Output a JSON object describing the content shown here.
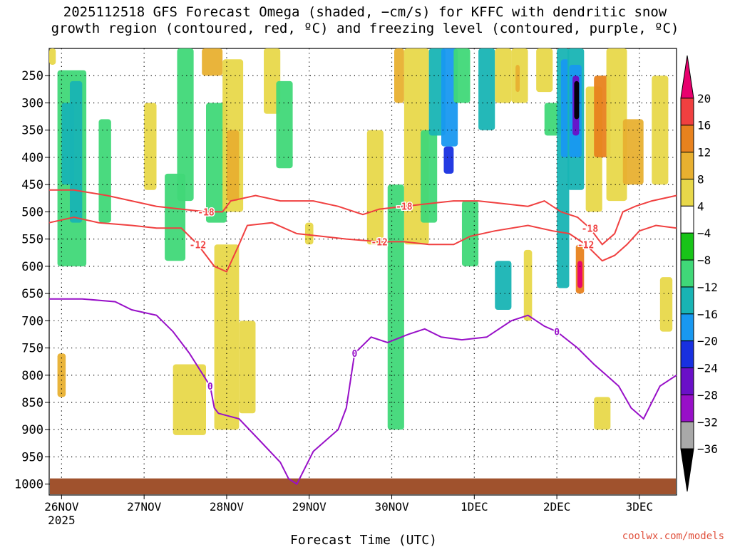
{
  "title": {
    "line1": "2025112518 GFS Forecast Omega (shaded, −cm/s) for KFFC with dendritic snow",
    "line2": "growth region (contoured, red, ºC) and freezing level (contoured, purple, ºC)"
  },
  "credit": "coolwx.com/models",
  "chart_data": {
    "type": "heatmap",
    "title": "2025112518 GFS Forecast Omega (shaded, −cm/s) for KFFC with dendritic snow growth region (contoured, red, ºC) and freezing level (contoured, purple, ºC)",
    "xlabel": "Forecast Time (UTC)",
    "ylabel": "",
    "x_ticks": [
      {
        "day": 0.15,
        "label": "26NOV",
        "sub": "2025"
      },
      {
        "day": 1.15,
        "label": "27NOV",
        "sub": ""
      },
      {
        "day": 2.15,
        "label": "28NOV",
        "sub": ""
      },
      {
        "day": 3.15,
        "label": "29NOV",
        "sub": ""
      },
      {
        "day": 4.15,
        "label": "30NOV",
        "sub": ""
      },
      {
        "day": 5.15,
        "label": "1DEC",
        "sub": ""
      },
      {
        "day": 6.15,
        "label": "2DEC",
        "sub": ""
      },
      {
        "day": 7.15,
        "label": "3DEC",
        "sub": ""
      }
    ],
    "xlim": [
      0,
      7.6
    ],
    "y_ticks": [
      250,
      300,
      350,
      400,
      450,
      500,
      550,
      600,
      650,
      700,
      750,
      800,
      850,
      900,
      950,
      1000
    ],
    "ylim": [
      200,
      1020
    ],
    "colorbar": {
      "labels": [
        "20",
        "16",
        "12",
        "8",
        "4",
        "−4",
        "−8",
        "−12",
        "−16",
        "−20",
        "−24",
        "−28",
        "−32",
        "−36"
      ],
      "colors": [
        "#e8006e",
        "#f04040",
        "#e8821e",
        "#e8b030",
        "#e8d84a",
        "#ffffff",
        "#18c418",
        "#40d878",
        "#18b4b4",
        "#1898f0",
        "#1830e0",
        "#6a10c8",
        "#9810c8",
        "#a8a8a8",
        "#000000"
      ]
    },
    "omega_regions": [
      {
        "x0": 0.1,
        "x1": 0.45,
        "p0": 240,
        "p1": 600,
        "value": -8
      },
      {
        "x0": 0.15,
        "x1": 0.3,
        "p0": 300,
        "p1": 450,
        "value": -12
      },
      {
        "x0": 0.1,
        "x1": 0.2,
        "p0": 760,
        "p1": 840,
        "value": 8
      },
      {
        "x0": 0.25,
        "x1": 0.4,
        "p0": 260,
        "p1": 520,
        "value": -12
      },
      {
        "x0": 0.0,
        "x1": 0.08,
        "p0": 200,
        "p1": 230,
        "value": 4
      },
      {
        "x0": 0.6,
        "x1": 0.75,
        "p0": 330,
        "p1": 520,
        "value": -8
      },
      {
        "x0": 1.15,
        "x1": 1.3,
        "p0": 300,
        "p1": 460,
        "value": 4
      },
      {
        "x0": 1.4,
        "x1": 1.65,
        "p0": 430,
        "p1": 590,
        "value": -8
      },
      {
        "x0": 1.55,
        "x1": 1.75,
        "p0": 200,
        "p1": 480,
        "value": -8
      },
      {
        "x0": 1.5,
        "x1": 1.9,
        "p0": 780,
        "p1": 910,
        "value": 4
      },
      {
        "x0": 1.85,
        "x1": 2.1,
        "p0": 200,
        "p1": 250,
        "value": 8
      },
      {
        "x0": 1.9,
        "x1": 2.15,
        "p0": 300,
        "p1": 520,
        "value": -8
      },
      {
        "x0": 2.1,
        "x1": 2.35,
        "p0": 220,
        "p1": 500,
        "value": 4
      },
      {
        "x0": 2.15,
        "x1": 2.3,
        "p0": 350,
        "p1": 480,
        "value": 8
      },
      {
        "x0": 2.0,
        "x1": 2.3,
        "p0": 560,
        "p1": 900,
        "value": 4
      },
      {
        "x0": 2.3,
        "x1": 2.5,
        "p0": 700,
        "p1": 870,
        "value": 4
      },
      {
        "x0": 2.6,
        "x1": 2.8,
        "p0": 200,
        "p1": 320,
        "value": 4
      },
      {
        "x0": 2.75,
        "x1": 2.95,
        "p0": 260,
        "p1": 420,
        "value": -8
      },
      {
        "x0": 3.1,
        "x1": 3.2,
        "p0": 520,
        "p1": 560,
        "value": 4
      },
      {
        "x0": 3.85,
        "x1": 4.05,
        "p0": 350,
        "p1": 560,
        "value": 4
      },
      {
        "x0": 4.1,
        "x1": 4.3,
        "p0": 450,
        "p1": 900,
        "value": -8
      },
      {
        "x0": 4.18,
        "x1": 4.3,
        "p0": 200,
        "p1": 300,
        "value": 8
      },
      {
        "x0": 4.3,
        "x1": 4.6,
        "p0": 200,
        "p1": 560,
        "value": 4
      },
      {
        "x0": 4.5,
        "x1": 4.7,
        "p0": 350,
        "p1": 520,
        "value": -8
      },
      {
        "x0": 4.6,
        "x1": 4.8,
        "p0": 200,
        "p1": 360,
        "value": -12
      },
      {
        "x0": 4.75,
        "x1": 4.95,
        "p0": 200,
        "p1": 380,
        "value": -16
      },
      {
        "x0": 4.78,
        "x1": 4.9,
        "p0": 380,
        "p1": 430,
        "value": -20
      },
      {
        "x0": 4.9,
        "x1": 5.1,
        "p0": 200,
        "p1": 300,
        "value": -8
      },
      {
        "x0": 5.0,
        "x1": 5.2,
        "p0": 480,
        "p1": 600,
        "value": -8
      },
      {
        "x0": 5.2,
        "x1": 5.4,
        "p0": 200,
        "p1": 350,
        "value": -12
      },
      {
        "x0": 5.4,
        "x1": 5.6,
        "p0": 200,
        "p1": 300,
        "value": 4
      },
      {
        "x0": 5.4,
        "x1": 5.6,
        "p0": 590,
        "p1": 680,
        "value": -12
      },
      {
        "x0": 5.6,
        "x1": 5.8,
        "p0": 200,
        "p1": 300,
        "value": 4
      },
      {
        "x0": 5.65,
        "x1": 5.7,
        "p0": 230,
        "p1": 280,
        "value": 8
      },
      {
        "x0": 5.75,
        "x1": 5.85,
        "p0": 570,
        "p1": 700,
        "value": 4
      },
      {
        "x0": 5.9,
        "x1": 6.1,
        "p0": 200,
        "p1": 280,
        "value": 4
      },
      {
        "x0": 6.0,
        "x1": 6.2,
        "p0": 300,
        "p1": 360,
        "value": -8
      },
      {
        "x0": 6.15,
        "x1": 6.3,
        "p0": 200,
        "p1": 640,
        "value": -12
      },
      {
        "x0": 6.2,
        "x1": 6.3,
        "p0": 220,
        "p1": 400,
        "value": -16
      },
      {
        "x0": 6.28,
        "x1": 6.48,
        "p0": 200,
        "p1": 460,
        "value": -12
      },
      {
        "x0": 6.3,
        "x1": 6.45,
        "p0": 230,
        "p1": 400,
        "value": -16
      },
      {
        "x0": 6.34,
        "x1": 6.42,
        "p0": 250,
        "p1": 360,
        "value": -24
      },
      {
        "x0": 6.36,
        "x1": 6.42,
        "p0": 260,
        "p1": 330,
        "value": -36
      },
      {
        "x0": 6.38,
        "x1": 6.48,
        "p0": 560,
        "p1": 650,
        "value": 12
      },
      {
        "x0": 6.4,
        "x1": 6.46,
        "p0": 590,
        "p1": 640,
        "value": 20
      },
      {
        "x0": 6.5,
        "x1": 6.7,
        "p0": 270,
        "p1": 500,
        "value": 4
      },
      {
        "x0": 6.6,
        "x1": 6.8,
        "p0": 250,
        "p1": 400,
        "value": 12
      },
      {
        "x0": 6.75,
        "x1": 7.0,
        "p0": 200,
        "p1": 480,
        "value": 4
      },
      {
        "x0": 6.95,
        "x1": 7.2,
        "p0": 330,
        "p1": 450,
        "value": 8
      },
      {
        "x0": 7.3,
        "x1": 7.5,
        "p0": 250,
        "p1": 450,
        "value": 4
      },
      {
        "x0": 7.4,
        "x1": 7.55,
        "p0": 620,
        "p1": 720,
        "value": 4
      },
      {
        "x0": 6.6,
        "x1": 6.8,
        "p0": 840,
        "p1": 900,
        "value": 4
      }
    ],
    "contours": [
      {
        "name": "-18",
        "color": "#f04040",
        "label": "-18",
        "points": [
          [
            0.0,
            460
          ],
          [
            0.3,
            460
          ],
          [
            0.7,
            470
          ],
          [
            1.0,
            480
          ],
          [
            1.3,
            490
          ],
          [
            1.6,
            495
          ],
          [
            1.9,
            500
          ],
          [
            2.1,
            500
          ],
          [
            2.2,
            480
          ],
          [
            2.5,
            470
          ],
          [
            2.8,
            480
          ],
          [
            3.2,
            480
          ],
          [
            3.5,
            490
          ],
          [
            3.8,
            505
          ],
          [
            4.0,
            495
          ],
          [
            4.3,
            490
          ],
          [
            4.6,
            485
          ],
          [
            4.9,
            480
          ],
          [
            5.2,
            480
          ],
          [
            5.5,
            485
          ],
          [
            5.8,
            490
          ],
          [
            6.0,
            480
          ],
          [
            6.2,
            500
          ],
          [
            6.4,
            510
          ],
          [
            6.55,
            530
          ],
          [
            6.7,
            560
          ],
          [
            6.85,
            540
          ],
          [
            6.95,
            500
          ],
          [
            7.1,
            490
          ],
          [
            7.3,
            480
          ],
          [
            7.6,
            470
          ]
        ]
      },
      {
        "name": "-12",
        "color": "#f04040",
        "label": "-12",
        "points": [
          [
            0.0,
            520
          ],
          [
            0.3,
            510
          ],
          [
            0.6,
            520
          ],
          [
            1.0,
            525
          ],
          [
            1.3,
            530
          ],
          [
            1.6,
            530
          ],
          [
            1.8,
            560
          ],
          [
            2.0,
            600
          ],
          [
            2.15,
            610
          ],
          [
            2.3,
            560
          ],
          [
            2.4,
            525
          ],
          [
            2.7,
            520
          ],
          [
            3.0,
            540
          ],
          [
            3.3,
            545
          ],
          [
            3.6,
            550
          ],
          [
            4.0,
            555
          ],
          [
            4.3,
            555
          ],
          [
            4.6,
            560
          ],
          [
            4.9,
            560
          ],
          [
            5.1,
            545
          ],
          [
            5.4,
            535
          ],
          [
            5.8,
            525
          ],
          [
            6.1,
            535
          ],
          [
            6.3,
            540
          ],
          [
            6.5,
            560
          ],
          [
            6.7,
            590
          ],
          [
            6.85,
            580
          ],
          [
            7.0,
            560
          ],
          [
            7.15,
            535
          ],
          [
            7.35,
            525
          ],
          [
            7.6,
            530
          ]
        ]
      },
      {
        "name": "0",
        "color": "#9810c8",
        "label": "0",
        "points": [
          [
            0.0,
            660
          ],
          [
            0.4,
            660
          ],
          [
            0.8,
            665
          ],
          [
            1.0,
            680
          ],
          [
            1.3,
            690
          ],
          [
            1.5,
            720
          ],
          [
            1.7,
            760
          ],
          [
            1.95,
            820
          ],
          [
            2.0,
            860
          ],
          [
            2.05,
            870
          ],
          [
            2.3,
            880
          ],
          [
            2.55,
            920
          ],
          [
            2.8,
            960
          ],
          [
            2.9,
            990
          ],
          [
            3.0,
            1000
          ],
          [
            3.2,
            940
          ],
          [
            3.5,
            900
          ],
          [
            3.6,
            860
          ],
          [
            3.7,
            760
          ],
          [
            3.9,
            730
          ],
          [
            4.1,
            740
          ],
          [
            4.35,
            725
          ],
          [
            4.55,
            715
          ],
          [
            4.75,
            730
          ],
          [
            5.0,
            735
          ],
          [
            5.3,
            730
          ],
          [
            5.6,
            700
          ],
          [
            5.8,
            690
          ],
          [
            6.0,
            710
          ],
          [
            6.15,
            720
          ],
          [
            6.4,
            750
          ],
          [
            6.6,
            780
          ],
          [
            6.75,
            800
          ],
          [
            6.9,
            820
          ],
          [
            7.05,
            860
          ],
          [
            7.2,
            880
          ],
          [
            7.4,
            820
          ],
          [
            7.6,
            800
          ]
        ]
      }
    ]
  }
}
